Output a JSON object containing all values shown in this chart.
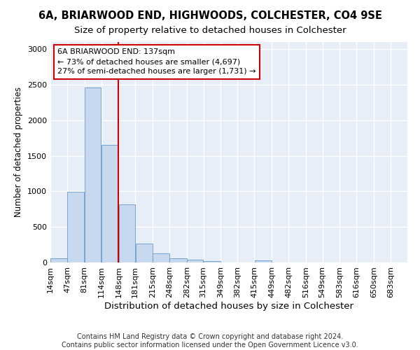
{
  "title": "6A, BRIARWOOD END, HIGHWOODS, COLCHESTER, CO4 9SE",
  "subtitle": "Size of property relative to detached houses in Colchester",
  "xlabel": "Distribution of detached houses by size in Colchester",
  "ylabel": "Number of detached properties",
  "bar_labels": [
    "14sqm",
    "47sqm",
    "81sqm",
    "114sqm",
    "148sqm",
    "181sqm",
    "215sqm",
    "248sqm",
    "282sqm",
    "315sqm",
    "349sqm",
    "382sqm",
    "415sqm",
    "449sqm",
    "482sqm",
    "516sqm",
    "549sqm",
    "583sqm",
    "616sqm",
    "650sqm",
    "683sqm"
  ],
  "bar_values": [
    60,
    990,
    2460,
    1650,
    820,
    270,
    125,
    55,
    40,
    20,
    0,
    0,
    30,
    0,
    0,
    0,
    0,
    0,
    0,
    0,
    0
  ],
  "bar_color": "#c8d8ee",
  "bar_edge_color": "#6699cc",
  "vline_x": 148,
  "annotation_text": "6A BRIARWOOD END: 137sqm\n← 73% of detached houses are smaller (4,697)\n27% of semi-detached houses are larger (1,731) →",
  "vline_color": "#cc0000",
  "annotation_box_edge_color": "#cc0000",
  "annotation_box_face_color": "#ffffff",
  "ylim": [
    0,
    3100
  ],
  "yticks": [
    0,
    500,
    1000,
    1500,
    2000,
    2500,
    3000
  ],
  "fig_bg": "#ffffff",
  "ax_bg": "#e8eef8",
  "grid_color": "#ffffff",
  "footer_line1": "Contains HM Land Registry data © Crown copyright and database right 2024.",
  "footer_line2": "Contains public sector information licensed under the Open Government Licence v3.0.",
  "title_fontsize": 10.5,
  "subtitle_fontsize": 9.5,
  "xlabel_fontsize": 9.5,
  "ylabel_fontsize": 8.5,
  "annot_fontsize": 8,
  "tick_fontsize": 8,
  "footer_fontsize": 7
}
